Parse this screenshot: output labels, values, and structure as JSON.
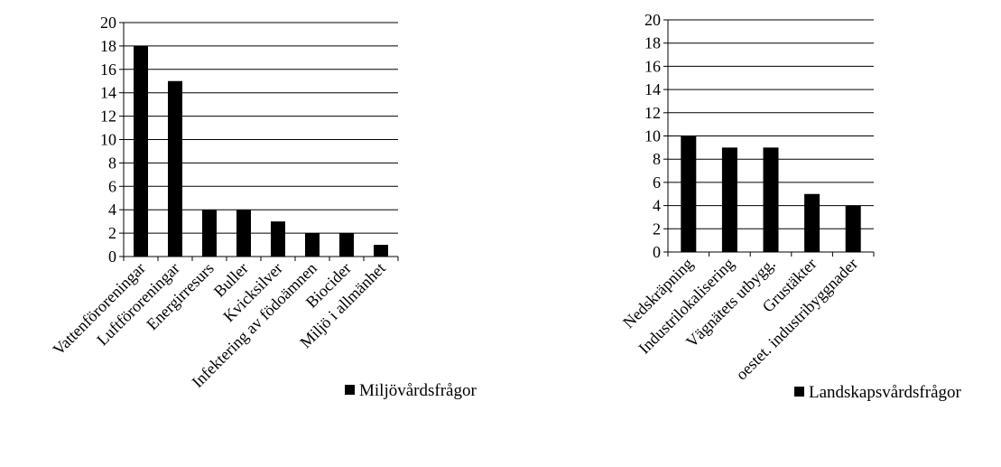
{
  "chart_data": [
    {
      "type": "bar",
      "categories": [
        "Vattenföroreningar",
        "Luftföroreningar",
        "Energirresurs",
        "Buller",
        "Kvicksilver",
        "Infektering av födoämnen",
        "Biocider",
        "Miljö i allmänhet"
      ],
      "series": [
        {
          "name": "Miljövårdsfrågor",
          "values": [
            18,
            15,
            4,
            4,
            3,
            2,
            2,
            1
          ]
        }
      ],
      "ylim": [
        0,
        20
      ],
      "yticks": [
        0,
        2,
        4,
        6,
        8,
        10,
        12,
        14,
        16,
        18,
        20
      ],
      "grid": true,
      "legend": "right",
      "bar_color": "#000000"
    },
    {
      "type": "bar",
      "categories": [
        "Nedskräpning",
        "Industrilokalisering",
        "Vägnätets utbygg.",
        "Grustäkter",
        "oestet. industribyggnader"
      ],
      "series": [
        {
          "name": "Landskapsvårdsfrågor",
          "values": [
            10,
            9,
            9,
            5,
            4
          ]
        }
      ],
      "ylim": [
        0,
        20
      ],
      "yticks": [
        0,
        2,
        4,
        6,
        8,
        10,
        12,
        14,
        16,
        18,
        20
      ],
      "grid": true,
      "legend": "right",
      "bar_color": "#000000"
    }
  ]
}
